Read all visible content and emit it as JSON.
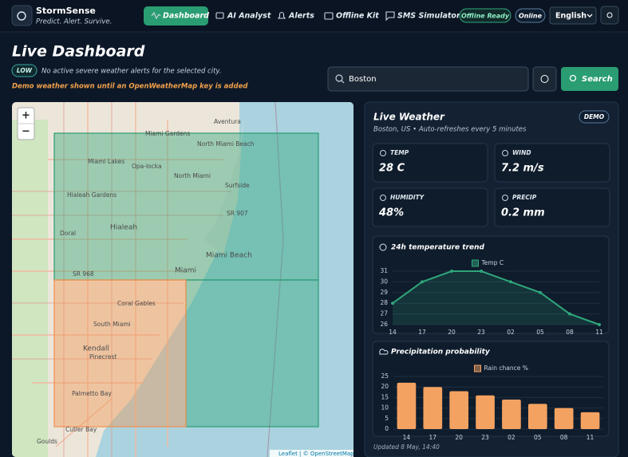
{
  "header": {
    "brand": "StormSense",
    "tagline": "Predict. Alert. Survive.",
    "nav": [
      "Dashboard",
      "AI Analyst",
      "Alerts",
      "Offline Kit",
      "SMS Simulator"
    ],
    "status": [
      "Offline Ready",
      "Online"
    ],
    "language": "English"
  },
  "page": {
    "title": "Live Dashboard",
    "alert_level": "LOW",
    "alert_text": "No active severe weather alerts for the selected city.",
    "demo_note": "Demo weather shown until an OpenWeatherMap key is added",
    "search_value": "Boston",
    "search_button": "Search"
  },
  "map": {
    "zoom_in": "+",
    "zoom_out": "−",
    "attribution": "Leaflet | © OpenStreetMap",
    "labels": [
      "Miami Gardens",
      "Aventura",
      "North Miami Beach",
      "Miami Lakes",
      "Opa-locka",
      "North Miami",
      "Surfside",
      "Hialeah Gardens",
      "Hialeah",
      "Doral",
      "SR 907",
      "Miami Beach",
      "Miami",
      "SR 968",
      "Coral Gables",
      "South Miami",
      "Kendall",
      "Pinecrest",
      "Palmetto Bay",
      "Cutler Bay",
      "Goulds"
    ]
  },
  "weather": {
    "title": "Live Weather",
    "badge": "DEMO",
    "subtitle": "Boston, US • Auto-refreshes every 5 minutes",
    "metrics": [
      {
        "label": "TEMP",
        "value": "28 C"
      },
      {
        "label": "WIND",
        "value": "7.2 m/s"
      },
      {
        "label": "HUMIDITY",
        "value": "48%"
      },
      {
        "label": "PRECIP",
        "value": "0.2 mm"
      }
    ],
    "updated": "Updated 8 May, 14:40"
  },
  "chart_data": [
    {
      "type": "line",
      "title": "24h temperature trend",
      "categories": [
        "14",
        "17",
        "20",
        "23",
        "02",
        "05",
        "08",
        "11"
      ],
      "series": [
        {
          "name": "Temp C",
          "color": "#2fa67a",
          "values": [
            28,
            30,
            31,
            31,
            30,
            29,
            27,
            26
          ]
        }
      ],
      "ylim": [
        26,
        31
      ],
      "yticks": [
        26,
        27,
        28,
        29,
        30,
        31
      ],
      "grid": true
    },
    {
      "type": "bar",
      "title": "Precipitation probability",
      "categories": [
        "14",
        "17",
        "20",
        "23",
        "02",
        "05",
        "08",
        "11"
      ],
      "series": [
        {
          "name": "Rain chance %",
          "color": "#f4a261",
          "values": [
            22,
            20,
            18,
            16,
            14,
            12,
            10,
            8
          ]
        }
      ],
      "ylim": [
        0,
        25
      ],
      "yticks": [
        0,
        5,
        10,
        15,
        20,
        25
      ],
      "grid": true
    }
  ]
}
